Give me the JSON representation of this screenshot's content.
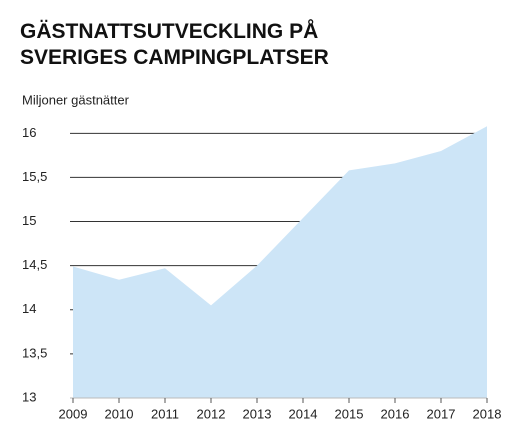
{
  "chart_data": {
    "type": "area",
    "title": [
      "GÄSTNATTSUTVECKLING PÅ",
      "SVERIGES CAMPINGPLATSER"
    ],
    "y_label": "Miljoner gästnätter",
    "categories": [
      "2009",
      "2010",
      "2011",
      "2012",
      "2013",
      "2014",
      "2015",
      "2016",
      "2017",
      "2018"
    ],
    "values": [
      14.49,
      14.34,
      14.47,
      14.05,
      14.5,
      15.04,
      15.58,
      15.66,
      15.8,
      16.08
    ],
    "color": "#cde5f7",
    "ylim": [
      13,
      16.1
    ],
    "yticks": [
      13,
      {
        "value": 13.5,
        "label": "13,5"
      },
      14,
      {
        "value": 14.5,
        "label": "14,5"
      },
      15,
      {
        "value": 15.5,
        "label": "15,5"
      },
      16
    ],
    "grid": true
  }
}
